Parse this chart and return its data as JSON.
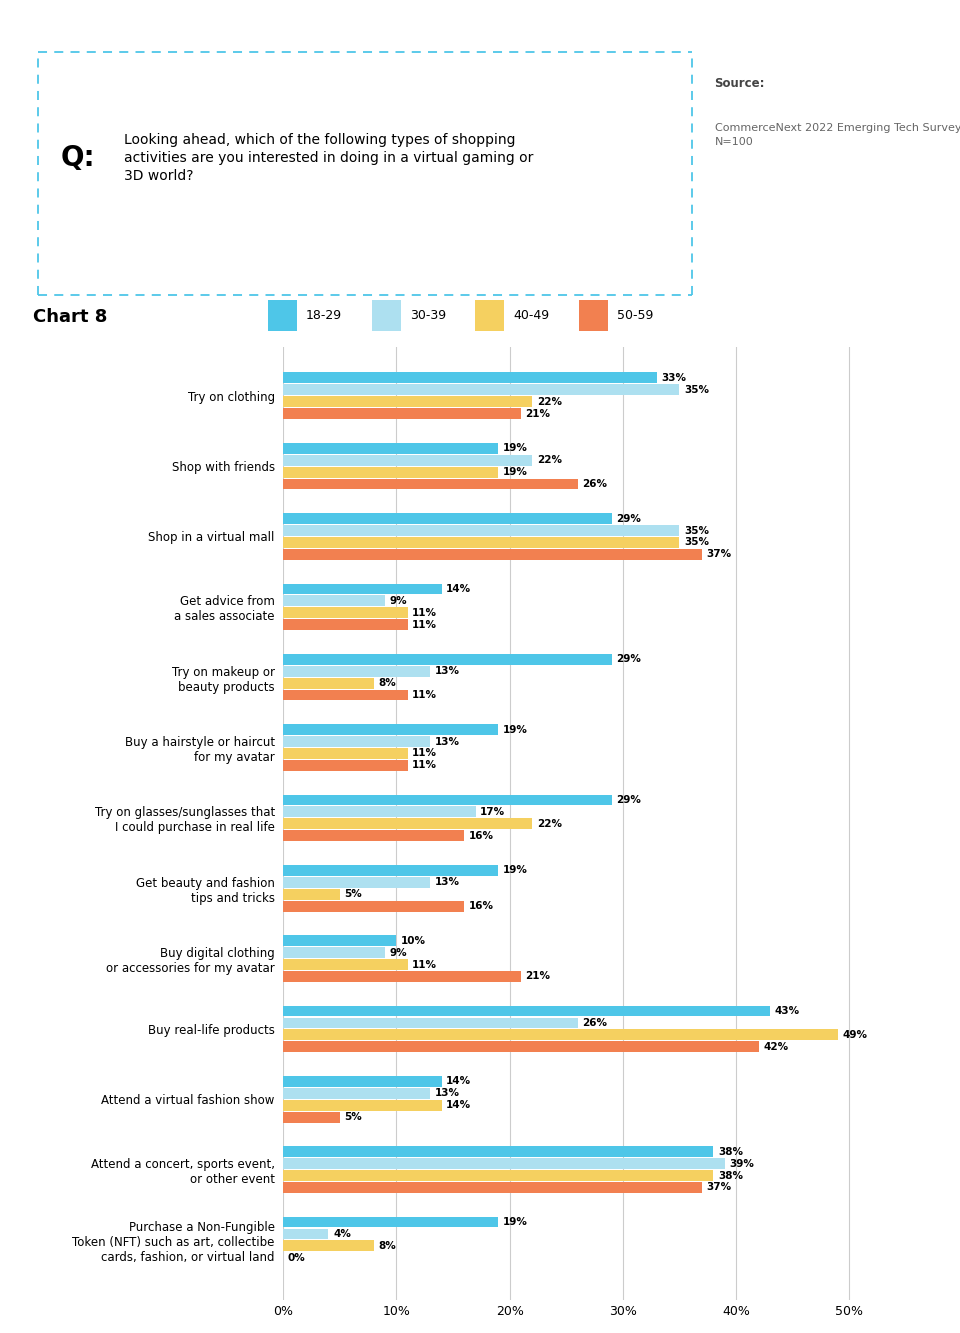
{
  "chart_title": "Chart 8",
  "question_text": "Looking ahead, which of the following types of shopping\nactivities are you interested in doing in a virtual gaming or\n3D world?",
  "legend_labels": [
    "18-29",
    "30-39",
    "40-49",
    "50-59"
  ],
  "legend_colors": [
    "#4EC6E8",
    "#ADE0F0",
    "#F5D060",
    "#F28050"
  ],
  "categories": [
    "Try on clothing",
    "Shop with friends",
    "Shop in a virtual mall",
    "Get advice from\na sales associate",
    "Try on makeup or\nbeauty products",
    "Buy a hairstyle or haircut\nfor my avatar",
    "Try on glasses/sunglasses that\nI could purchase in real life",
    "Get beauty and fashion\ntips and tricks",
    "Buy digital clothing\nor accessories for my avatar",
    "Buy real-life products",
    "Attend a virtual fashion show",
    "Attend a concert, sports event,\nor other event",
    "Purchase a Non-Fungible\nToken (NFT) such as art, collectibe\ncards, fashion, or virtual land"
  ],
  "values": [
    [
      33,
      35,
      22,
      21
    ],
    [
      19,
      22,
      19,
      26
    ],
    [
      29,
      35,
      35,
      37
    ],
    [
      14,
      9,
      11,
      11
    ],
    [
      29,
      13,
      8,
      11
    ],
    [
      19,
      13,
      11,
      11
    ],
    [
      29,
      17,
      22,
      16
    ],
    [
      19,
      13,
      5,
      16
    ],
    [
      10,
      9,
      11,
      21
    ],
    [
      43,
      26,
      49,
      42
    ],
    [
      14,
      13,
      14,
      5
    ],
    [
      38,
      39,
      38,
      37
    ],
    [
      19,
      4,
      8,
      0
    ]
  ],
  "colors": [
    "#4EC6E8",
    "#ADE0F0",
    "#F5D060",
    "#F28050"
  ],
  "background_color": "#FFFFFF",
  "bar_height": 0.17,
  "fig_width": 9.6,
  "fig_height": 13.33
}
